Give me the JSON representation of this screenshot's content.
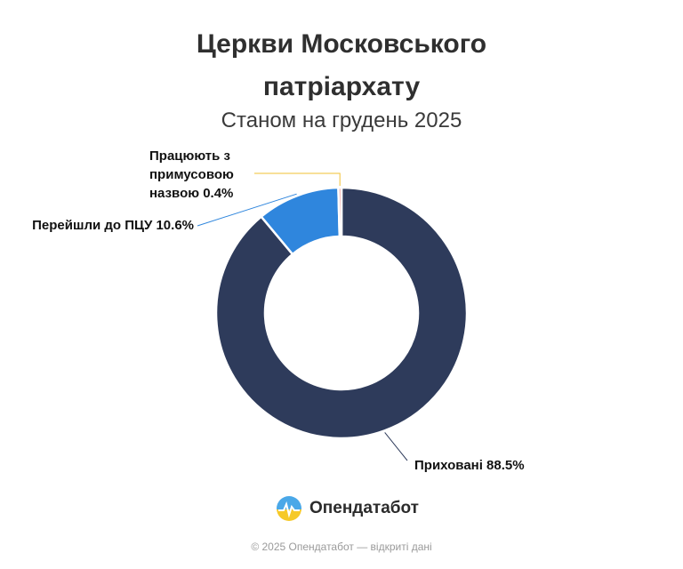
{
  "chart_data": {
    "type": "pie",
    "variant": "donut",
    "title_lines": [
      "Церкви Московського",
      "патріархату"
    ],
    "subtitle": "Станом на грудень 2025",
    "slices": [
      {
        "label_lines": [
          "Приховані 88.5%"
        ],
        "value": 88.5,
        "color": "#2e3b5b",
        "leader_color": "#2e3b5b"
      },
      {
        "label_lines": [
          "Перейшли до ПЦУ 10.6%"
        ],
        "value": 10.6,
        "color": "#2f86dd",
        "leader_color": "#2f86dd"
      },
      {
        "label_lines": [
          "Працюють з",
          "примусовою",
          "назвою 0.4%"
        ],
        "value": 0.4,
        "color": "#f4a6a1",
        "leader_color": "#f2c233"
      }
    ],
    "legend": "none"
  },
  "logo": {
    "text": "Опендатабот"
  },
  "footer": {
    "text": "© 2025 Опендатабот — відкриті дані"
  }
}
